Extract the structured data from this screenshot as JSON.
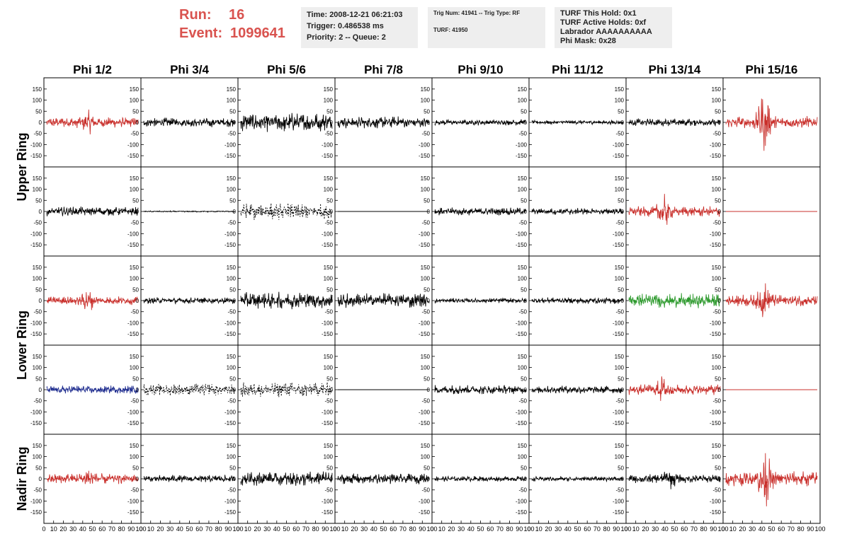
{
  "header": {
    "run_label": "Run:",
    "run_value": "16",
    "event_label": "Event:",
    "event_value": "1099641",
    "time_box": [
      "Time: 2008-12-21 06:21:03",
      "Trigger: 0.486538 ms",
      "Priority: 2 -- Queue: 2"
    ],
    "trig_box": [
      "Trig Num: 41941 -- Trig Type: RF",
      "",
      "TURF: 41950"
    ],
    "turf_box": [
      "TURF This Hold: 0x1",
      "TURF Active Holds: 0xf",
      "Labrador AAAAAAAAAA",
      "Phi Mask: 0x28"
    ]
  },
  "columns": [
    "Phi 1/2",
    "Phi 3/4",
    "Phi 5/6",
    "Phi 7/8",
    "Phi 9/10",
    "Phi 11/12",
    "Phi 13/14",
    "Phi 15/16"
  ],
  "row_groups": [
    "Upper Ring",
    "Lower Ring",
    "Nadir Ring"
  ],
  "y_ticks": [
    "150",
    "100",
    "50",
    "0",
    "-50",
    "-100",
    "-150"
  ],
  "x_ticks": [
    "0",
    "10",
    "20",
    "30",
    "40",
    "50",
    "60",
    "70",
    "80",
    "90",
    "100"
  ],
  "colors": {
    "red": "#c9302c",
    "black": "#000000",
    "green": "#2e9a2e",
    "blue": "#1f2d8f"
  },
  "panels": [
    [
      {
        "c": "red",
        "a": 25,
        "burst": 0.45
      },
      {
        "c": "black",
        "a": 22
      },
      {
        "c": "black",
        "a": 45
      },
      {
        "c": "black",
        "a": 28
      },
      {
        "c": "black",
        "a": 14
      },
      {
        "c": "black",
        "a": 10
      },
      {
        "c": "black",
        "a": 18
      },
      {
        "c": "red",
        "a": 30,
        "burst": 0.42,
        "ba": 150
      }
    ],
    [
      {
        "c": "black",
        "a": 22
      },
      {
        "c": "black",
        "a": 3
      },
      {
        "c": "black",
        "a": 40,
        "dash": true
      },
      {
        "c": "black",
        "a": 0
      },
      {
        "c": "black",
        "a": 18
      },
      {
        "c": "black",
        "a": 16
      },
      {
        "c": "red",
        "a": 25,
        "burst": 0.38,
        "ba": 85
      },
      {
        "c": "red",
        "a": 0
      }
    ],
    [
      {
        "c": "red",
        "a": 20,
        "burst": 0.45
      },
      {
        "c": "black",
        "a": 15
      },
      {
        "c": "black",
        "a": 40
      },
      {
        "c": "black",
        "a": 35
      },
      {
        "c": "black",
        "a": 12
      },
      {
        "c": "black",
        "a": 15
      },
      {
        "c": "green",
        "a": 35
      },
      {
        "c": "red",
        "a": 28,
        "burst": 0.42,
        "ba": 90
      }
    ],
    [
      {
        "c": "blue",
        "a": 20
      },
      {
        "c": "black",
        "a": 28,
        "dash": true
      },
      {
        "c": "black",
        "a": 35,
        "dash": true
      },
      {
        "c": "black",
        "a": 0
      },
      {
        "c": "black",
        "a": 22
      },
      {
        "c": "black",
        "a": 18
      },
      {
        "c": "red",
        "a": 25,
        "burst": 0.38,
        "ba": 75
      },
      {
        "c": "red",
        "a": 0
      }
    ],
    [
      {
        "c": "red",
        "a": 25,
        "burst": 0.45
      },
      {
        "c": "black",
        "a": 18
      },
      {
        "c": "black",
        "a": 35
      },
      {
        "c": "black",
        "a": 25
      },
      {
        "c": "black",
        "a": 13
      },
      {
        "c": "black",
        "a": 12
      },
      {
        "c": "black",
        "a": 22,
        "burst": 0.45,
        "ba": 50
      },
      {
        "c": "red",
        "a": 35,
        "burst": 0.42,
        "ba": 160
      }
    ]
  ]
}
